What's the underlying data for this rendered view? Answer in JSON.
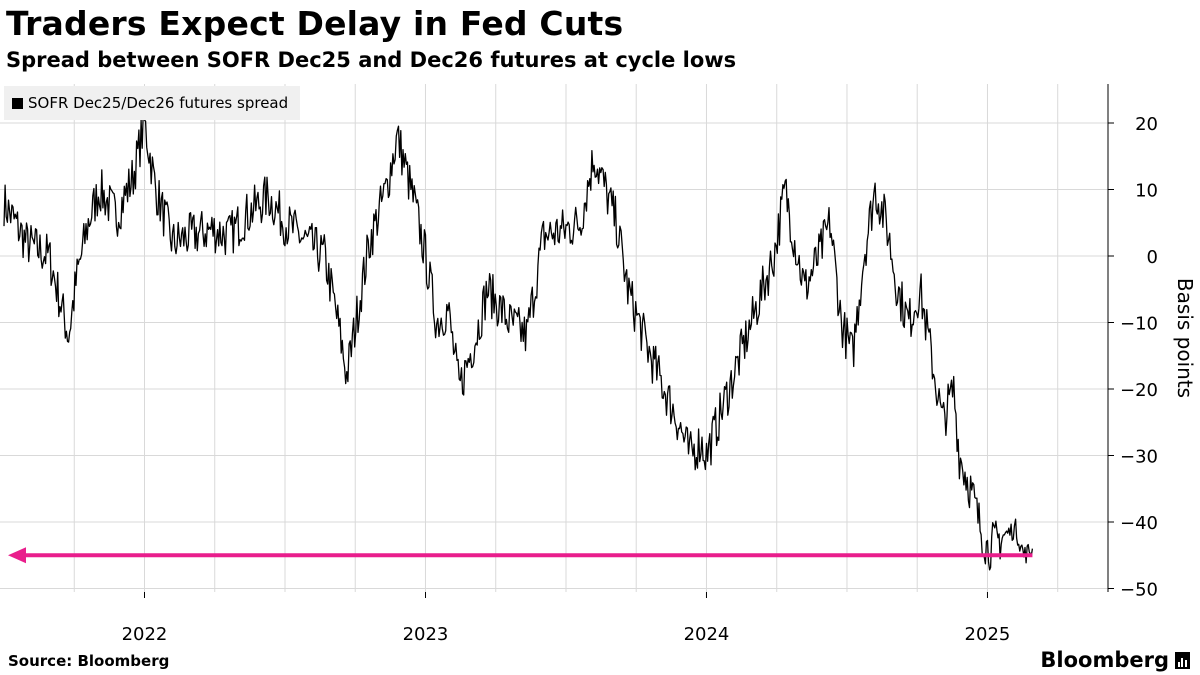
{
  "header": {
    "title": "Traders Expect Delay in Fed Cuts",
    "subtitle": "Spread between SOFR Dec25 and Dec26 futures at cycle lows"
  },
  "legend": {
    "label": "SOFR Dec25/Dec26 futures spread"
  },
  "footer": {
    "source": "Source: Bloomberg",
    "brand": "Bloomberg"
  },
  "colors": {
    "line": "#000000",
    "grid": "#d9d9d9",
    "arrow": "#e91e8c"
  },
  "chart_data": {
    "type": "line",
    "title": "Traders Expect Delay in Fed Cuts",
    "subtitle": "Spread between SOFR Dec25 and Dec26 futures at cycle lows",
    "xlabel": "",
    "ylabel": "Basis points",
    "y_axis_side": "right",
    "ylim": [
      -51,
      26
    ],
    "yticks": [
      20,
      10,
      0,
      -10,
      -20,
      -30,
      -40,
      -50
    ],
    "xlim": [
      2021.5,
      2025.35
    ],
    "xtick_labels": [
      {
        "x": 2022.0,
        "label": "2022"
      },
      {
        "x": 2023.0,
        "label": "2023"
      },
      {
        "x": 2024.0,
        "label": "2024"
      },
      {
        "x": 2025.0,
        "label": "2025"
      }
    ],
    "minor_gridlines_x": [
      2021.75,
      2022.25,
      2022.5,
      2022.75,
      2023.25,
      2023.5,
      2023.75,
      2024.25,
      2024.5,
      2024.75,
      2025.25
    ],
    "grid": true,
    "legend": "top-left",
    "series": [
      {
        "name": "SOFR Dec25/Dec26 futures spread",
        "x": [
          2021.5,
          2021.58,
          2021.66,
          2021.73,
          2021.76,
          2021.8,
          2021.84,
          2021.9,
          2021.96,
          2022.0,
          2022.04,
          2022.1,
          2022.16,
          2022.24,
          2022.3,
          2022.36,
          2022.44,
          2022.5,
          2022.58,
          2022.64,
          2022.68,
          2022.72,
          2022.8,
          2022.86,
          2022.9,
          2022.96,
          2023.0,
          2023.04,
          2023.08,
          2023.12,
          2023.18,
          2023.22,
          2023.3,
          2023.36,
          2023.42,
          2023.5,
          2023.55,
          2023.6,
          2023.64,
          2023.68,
          2023.72,
          2023.76,
          2023.8,
          2023.85,
          2023.9,
          2023.94,
          2023.98,
          2024.0,
          2024.04,
          2024.08,
          2024.12,
          2024.16,
          2024.2,
          2024.24,
          2024.28,
          2024.31,
          2024.35,
          2024.4,
          2024.44,
          2024.48,
          2024.52,
          2024.56,
          2024.6,
          2024.64,
          2024.68,
          2024.72,
          2024.76,
          2024.8,
          2024.84,
          2024.88,
          2024.9,
          2024.94,
          2024.97,
          2025.0,
          2025.03,
          2025.06,
          2025.1,
          2025.13,
          2025.16
        ],
        "values": [
          8,
          2,
          0,
          -12,
          -3,
          5,
          10,
          6,
          12,
          20,
          10,
          2,
          3,
          4,
          3,
          6,
          9,
          5,
          2,
          0,
          -8,
          -18,
          2,
          10,
          18,
          8,
          0,
          -10,
          -8,
          -20,
          -12,
          -5,
          -10,
          -12,
          3,
          4,
          5,
          15,
          10,
          5,
          -5,
          -10,
          -15,
          -20,
          -25,
          -30,
          -28,
          -30,
          -25,
          -20,
          -15,
          -10,
          -5,
          0,
          10,
          3,
          -5,
          0,
          5,
          -10,
          -15,
          0,
          10,
          5,
          -5,
          -10,
          -5,
          -15,
          -25,
          -20,
          -30,
          -35,
          -40,
          -44,
          -43,
          -42,
          -41,
          -45,
          -44
        ]
      }
    ],
    "annotations": [
      {
        "type": "horizontal-arrow",
        "y": -45,
        "direction": "left",
        "color": "pink"
      }
    ]
  }
}
